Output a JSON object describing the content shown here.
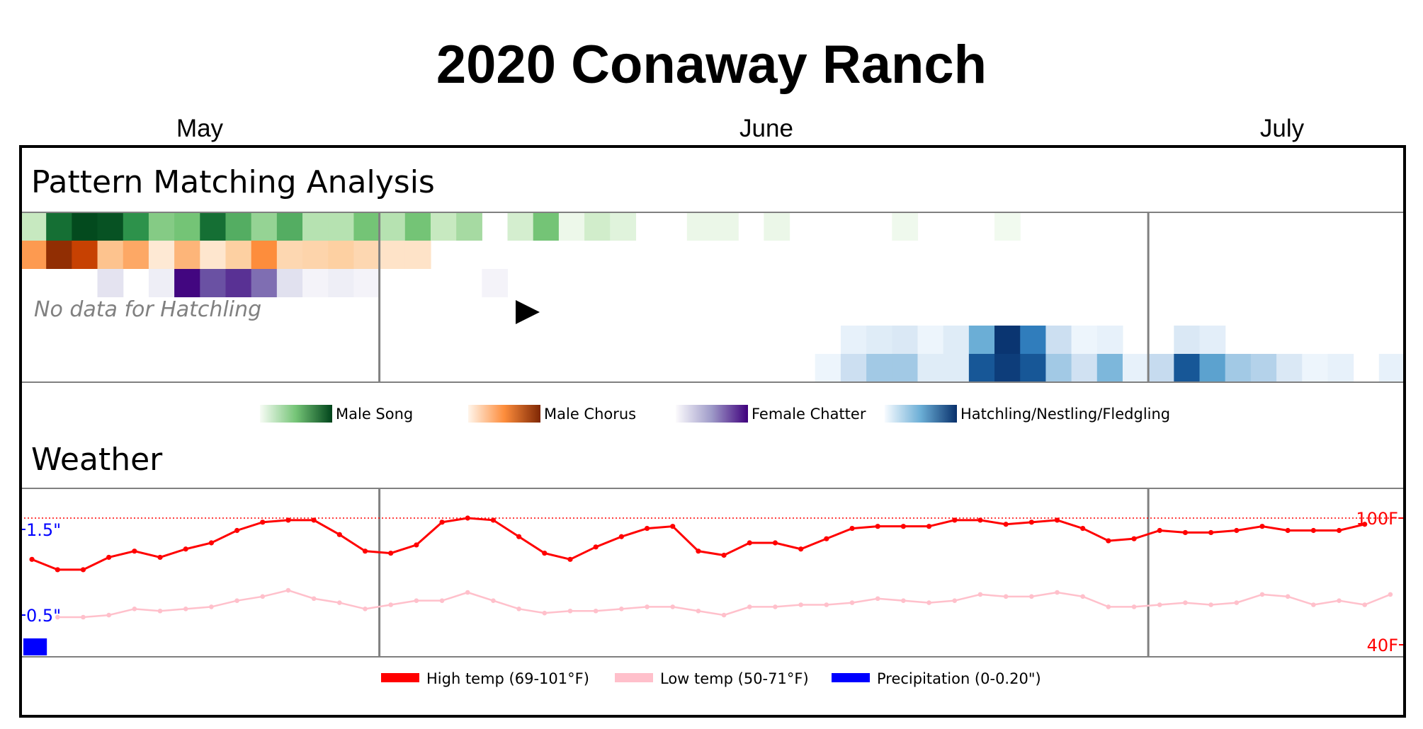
{
  "title": "2020 Conaway Ranch",
  "months": [
    "May",
    "June",
    "July"
  ],
  "pattern": {
    "heading": "Pattern Matching Analysis",
    "no_data_text": "No data for Hatchling",
    "play_icon": "play-icon"
  },
  "weather": {
    "heading": "Weather"
  },
  "legend_pattern": [
    {
      "label": "Male Song",
      "colors": [
        "#f7fcf5",
        "#74c476",
        "#00441b"
      ]
    },
    {
      "label": "Male Chorus",
      "colors": [
        "#fff5eb",
        "#fd8d3c",
        "#7f2704"
      ]
    },
    {
      "label": "Female Chatter",
      "colors": [
        "#fcfbfd",
        "#9e9ac8",
        "#3f007d"
      ]
    },
    {
      "label": "Hatchling/Nestling/Fledgling",
      "colors": [
        "#f7fbff",
        "#6baed6",
        "#08306b"
      ]
    }
  ],
  "legend_weather": [
    {
      "label": "High temp (69-101°F)",
      "color": "#ff0000"
    },
    {
      "label": "Low temp (50-71°F)",
      "color": "#ffc0cb"
    },
    {
      "label": "Precipitation (0-0.20\")",
      "color": "#0000ff"
    }
  ],
  "chart_data": [
    {
      "type": "heatmap",
      "title": "Pattern Matching Analysis",
      "day_slots": 54,
      "month_boundaries_after_slot": [
        14,
        44
      ],
      "rows": [
        {
          "name": "Male Song",
          "colormap": "Greens",
          "values": [
            0.25,
            0.85,
            0.98,
            0.95,
            0.72,
            0.45,
            0.5,
            0.85,
            0.6,
            0.4,
            0.6,
            0.3,
            0.3,
            0.5,
            0.3,
            0.5,
            0.25,
            0.35,
            0,
            0.18,
            0.5,
            0.05,
            0.2,
            0.12,
            0,
            0,
            0.06,
            0.06,
            0,
            0.06,
            0,
            0,
            0,
            0,
            0.04,
            0,
            0,
            0,
            0.03,
            0,
            0,
            0,
            0,
            0,
            0,
            0,
            0,
            0,
            0,
            0,
            0,
            0,
            0,
            0
          ]
        },
        {
          "name": "Male Chorus",
          "colormap": "Oranges",
          "values": [
            0.45,
            0.95,
            0.8,
            0.3,
            0.4,
            0.08,
            0.35,
            0.1,
            0.25,
            0.5,
            0.2,
            0.22,
            0.25,
            0.2,
            0.12,
            0.12,
            0,
            0,
            0,
            0,
            0,
            0,
            0,
            0,
            0,
            0,
            0,
            0,
            0,
            0,
            0,
            0,
            0,
            0,
            0,
            0,
            0,
            0,
            0,
            0,
            0,
            0,
            0,
            0,
            0,
            0,
            0,
            0,
            0,
            0,
            0,
            0,
            0,
            0
          ]
        },
        {
          "name": "Female Chatter",
          "colormap": "Purples",
          "values": [
            0,
            0,
            0,
            0.18,
            0,
            0.1,
            0.98,
            0.75,
            0.85,
            0.65,
            0.2,
            0.06,
            0.1,
            0.06,
            0,
            0,
            0,
            0,
            0.06,
            0,
            0,
            0,
            0,
            0,
            0,
            0,
            0,
            0,
            0,
            0,
            0,
            0,
            0,
            0,
            0,
            0,
            0,
            0,
            0,
            0,
            0,
            0,
            0,
            0,
            0,
            0,
            0,
            0,
            0,
            0,
            0,
            0,
            0,
            0
          ]
        },
        {
          "name": "Hatchling",
          "colormap": "Blues",
          "values": [],
          "no_data": true
        },
        {
          "name": "Nestling",
          "colormap": "Blues",
          "values": [
            0,
            0,
            0,
            0,
            0,
            0,
            0,
            0,
            0,
            0,
            0,
            0,
            0,
            0,
            0,
            0,
            0,
            0,
            0,
            0,
            0,
            0,
            0,
            0,
            0,
            0,
            0,
            0,
            0,
            0,
            0,
            0,
            0.08,
            0.12,
            0.15,
            0.05,
            0.12,
            0.5,
            0.98,
            0.7,
            0.22,
            0.05,
            0.08,
            0,
            0,
            0.15,
            0.1,
            0,
            0,
            0,
            0,
            0,
            0,
            0
          ]
        },
        {
          "name": "Fledgling",
          "colormap": "Blues",
          "values": [
            0,
            0,
            0,
            0,
            0,
            0,
            0,
            0,
            0,
            0,
            0,
            0,
            0,
            0,
            0,
            0,
            0,
            0,
            0,
            0,
            0,
            0,
            0,
            0,
            0,
            0,
            0,
            0,
            0,
            0,
            0,
            0.05,
            0.22,
            0.35,
            0.35,
            0.12,
            0.12,
            0.85,
            0.95,
            0.85,
            0.35,
            0.2,
            0.45,
            0.08,
            0.25,
            0.85,
            0.55,
            0.35,
            0.3,
            0.15,
            0.05,
            0.08,
            0,
            0.08
          ]
        }
      ]
    },
    {
      "type": "line",
      "title": "Weather",
      "x": [
        1,
        2,
        3,
        4,
        5,
        6,
        7,
        8,
        9,
        10,
        11,
        12,
        13,
        14,
        15,
        16,
        17,
        18,
        19,
        20,
        21,
        22,
        23,
        24,
        25,
        26,
        27,
        28,
        29,
        30,
        31,
        32,
        33,
        34,
        35,
        36,
        37,
        38,
        39,
        40,
        41,
        42,
        43,
        44,
        45,
        46,
        47,
        48,
        49,
        50,
        51,
        52,
        53,
        54
      ],
      "series": [
        {
          "name": "High temp (69-101°F)",
          "color": "#ff0000",
          "values": [
            80,
            75,
            75,
            81,
            84,
            81,
            85,
            88,
            94,
            98,
            99,
            99,
            92,
            84,
            83,
            87,
            98,
            100,
            99,
            91,
            83,
            80,
            86,
            91,
            95,
            96,
            84,
            82,
            88,
            88,
            85,
            90,
            95,
            96,
            96,
            96,
            99,
            99,
            97,
            98,
            99,
            95,
            89,
            90,
            94,
            93,
            93,
            94,
            96,
            94,
            94,
            94,
            97,
            null
          ]
        },
        {
          "name": "Low temp (50-71°F)",
          "color": "#ffc0cb",
          "values": [
            null,
            52,
            52,
            53,
            56,
            55,
            56,
            57,
            60,
            62,
            65,
            61,
            59,
            56,
            58,
            60,
            60,
            64,
            60,
            56,
            54,
            55,
            55,
            56,
            57,
            57,
            55,
            53,
            57,
            57,
            58,
            58,
            59,
            61,
            60,
            59,
            60,
            63,
            62,
            62,
            64,
            62,
            57,
            57,
            58,
            59,
            58,
            59,
            63,
            62,
            58,
            60,
            58,
            63
          ]
        },
        {
          "name": "Precipitation (0-0.20\")",
          "color": "#0000ff",
          "values": [
            0.2,
            0,
            0,
            0,
            0,
            0,
            0,
            0,
            0,
            0,
            0,
            0,
            0,
            0,
            0,
            0,
            0,
            0,
            0,
            0,
            0,
            0,
            0,
            0,
            0,
            0,
            0,
            0,
            0,
            0,
            0,
            0,
            0,
            0,
            0,
            0,
            0,
            0,
            0,
            0,
            0,
            0,
            0,
            0,
            0,
            0,
            0,
            0,
            0,
            0,
            0,
            0,
            0,
            0
          ]
        }
      ],
      "temp_ylim": [
        40,
        100
      ],
      "temp_ticks": [
        "100F",
        "40F"
      ],
      "precip_ticks": [
        "1.5\"",
        "0.5\""
      ],
      "reference_line": 100
    }
  ]
}
